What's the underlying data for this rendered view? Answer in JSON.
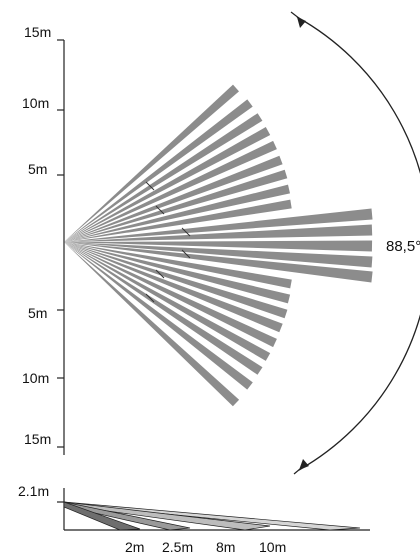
{
  "top_view": {
    "distance_labels": [
      "15m",
      "10m",
      "5m",
      "5m",
      "10m",
      "15m"
    ]
  },
  "coverage_angle": "88,5°",
  "side_view": {
    "height_label": "2.1m",
    "distance_labels": [
      "2m",
      "2.5m",
      "8m",
      "10m"
    ]
  },
  "colors": {
    "beam": "#8c8c8c",
    "beam_light": "#d2d2d2",
    "line": "#222222"
  }
}
